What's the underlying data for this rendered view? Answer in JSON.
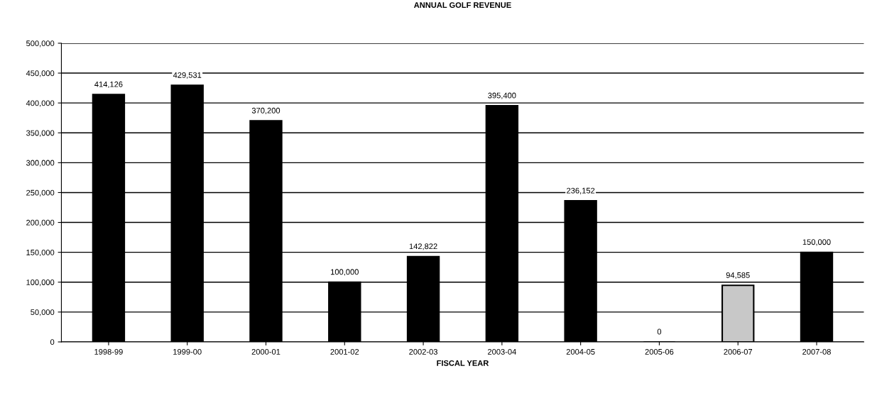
{
  "chart_data": {
    "type": "bar",
    "title": "ANNUAL GOLF REVENUE",
    "xlabel": "FISCAL YEAR",
    "categories": [
      "1998-99",
      "1999-00",
      "2000-01",
      "2001-02",
      "2002-03",
      "2003-04",
      "2004-05",
      "2005-06",
      "2006-07",
      "2007-08"
    ],
    "values": [
      414126,
      429531,
      370200,
      100000,
      142822,
      395400,
      236152,
      0,
      94585,
      150000
    ],
    "colors": [
      "#000000",
      "#000000",
      "#000000",
      "#000000",
      "#000000",
      "#000000",
      "#000000",
      "#000000",
      "#c8c8c8",
      "#000000"
    ],
    "value_labels": [
      "414,126",
      "429,531",
      "370,200",
      "100,000",
      "142,822",
      "395,400",
      "236,152",
      "0",
      "94,585",
      "150,000"
    ],
    "ylim": [
      0,
      500000
    ],
    "yticks": [
      {
        "value": 0,
        "label": "0"
      },
      {
        "value": 50000,
        "label": "50,000"
      },
      {
        "value": 100000,
        "label": "100,000"
      },
      {
        "value": 150000,
        "label": "150,000"
      },
      {
        "value": 200000,
        "label": "200,000"
      },
      {
        "value": 250000,
        "label": "250,000"
      },
      {
        "value": 300000,
        "label": "300,000"
      },
      {
        "value": 350000,
        "label": "350,000"
      },
      {
        "value": 400000,
        "label": "400,000"
      },
      {
        "value": 450000,
        "label": "450,000"
      },
      {
        "value": 500000,
        "label": "500,000"
      }
    ],
    "grid": "y",
    "legend": false
  }
}
